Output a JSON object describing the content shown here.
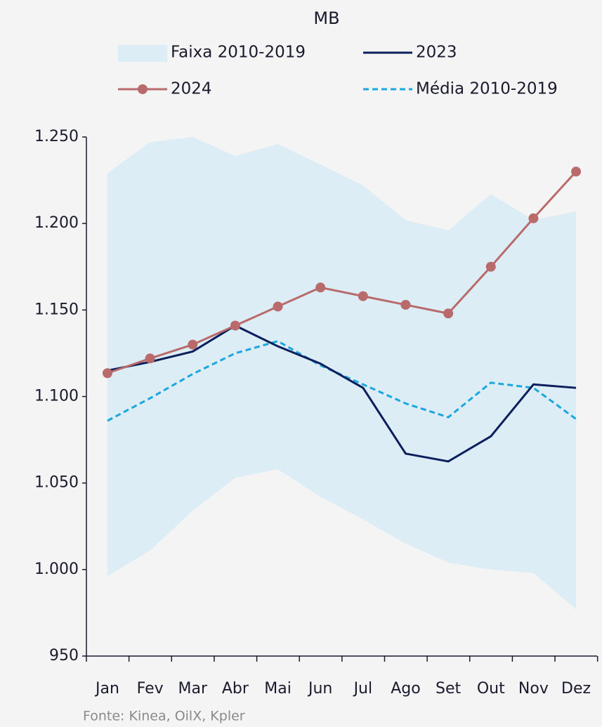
{
  "chart_data": {
    "type": "line",
    "subtitle": "MB",
    "categories": [
      "Jan",
      "Fev",
      "Mar",
      "Abr",
      "Mai",
      "Jun",
      "Jul",
      "Ago",
      "Set",
      "Out",
      "Nov",
      "Dez"
    ],
    "band": {
      "name": "Faixa 2010-2019",
      "color": "#dcedf5",
      "upper": [
        1229,
        1247,
        1250,
        1239,
        1246,
        1234,
        1222,
        1202,
        1196,
        1217,
        1202,
        1207
      ],
      "lower": [
        996,
        1011,
        1034,
        1053,
        1058,
        1042,
        1029,
        1015,
        1004,
        1000,
        998,
        977
      ]
    },
    "series": [
      {
        "name": "2023",
        "color": "#0b1f5c",
        "style": "solid",
        "markers": false,
        "values": [
          1115,
          1120,
          1126,
          1141,
          1129,
          1119,
          1105,
          1067,
          1062.5,
          1077,
          1107,
          1105
        ]
      },
      {
        "name": "2024",
        "color": "#b96b6b",
        "style": "solid",
        "markers": true,
        "values": [
          1113.5,
          1122,
          1130,
          1141,
          1152,
          1163,
          1158,
          1153,
          1148,
          1175,
          1203,
          1230
        ]
      },
      {
        "name": "Média 2010-2019",
        "color": "#1aa7e0",
        "style": "dashed",
        "markers": false,
        "values": [
          1086,
          1099,
          1113,
          1125,
          1132,
          1118,
          1107,
          1096,
          1088,
          1108,
          1105,
          1087
        ]
      }
    ],
    "ylim": [
      950,
      1250
    ],
    "yticks": [
      950,
      {
        "value": 1000,
        "label": "1.000"
      },
      {
        "value": 1050,
        "label": "1.050"
      },
      {
        "value": 1100,
        "label": "1.100"
      },
      {
        "value": 1150,
        "label": "1.150"
      },
      {
        "value": 1200,
        "label": "1.200"
      },
      {
        "value": 1250,
        "label": "1.250"
      }
    ],
    "source": "Fonte: Kinea, OilX, Kpler"
  }
}
